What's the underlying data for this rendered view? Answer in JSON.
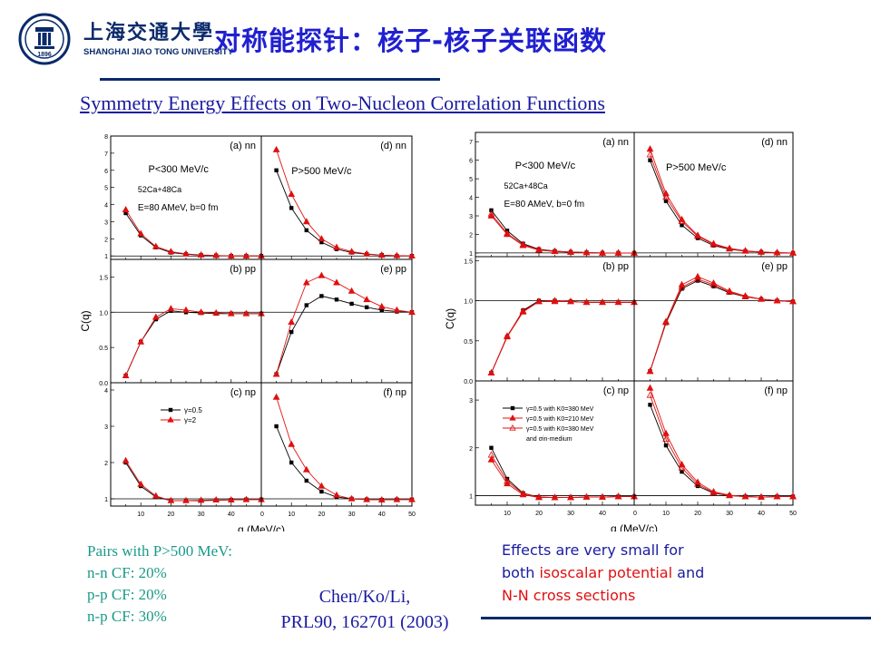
{
  "header": {
    "title": "对称能探针：核子-核子关联函数",
    "university_cn": "上海交通大學",
    "university_en": "SHANGHAI JIAO TONG UNIVERSITY",
    "logo_year": "1896"
  },
  "subtitle": "Symmetry Energy Effects on Two-Nucleon Correlation Functions",
  "notes": {
    "left": [
      "Pairs with P>500 MeV:",
      "n-n CF: 20%",
      "p-p CF: 20%",
      "n-p CF: 30%"
    ],
    "citation": [
      "Chen/Ko/Li,",
      "PRL90, 162701 (2003)"
    ],
    "right_line1": "Effects are very small for",
    "right_line2_a": "both ",
    "right_line2_b": "isoscalar potential",
    "right_line2_c": " and",
    "right_line3": "N-N cross sections"
  },
  "colors": {
    "title": "#2020d0",
    "navy": "#0a2a6b",
    "teal": "#1a9a88",
    "red": "#e01010",
    "black": "#000000"
  },
  "chart_data": [
    {
      "type": "line",
      "xlabel": "q (MeV/c)",
      "ylabel": "C(q)",
      "x": [
        5,
        10,
        15,
        20,
        25,
        30,
        35,
        40,
        45,
        50
      ],
      "panels": [
        {
          "label": "(a) nn",
          "ylim": [
            0.8,
            8
          ],
          "yticks": [
            1,
            2,
            3,
            4,
            5,
            6,
            7,
            8
          ],
          "annotations": [
            "P<300 MeV/c",
            "52Ca+48Ca",
            "E=80 AMeV, b=0 fm"
          ],
          "series": [
            {
              "values": [
                3.5,
                2.2,
                1.5,
                1.2,
                1.1,
                1.05,
                1.02,
                1.0,
                1.0,
                1.0
              ],
              "color": "#000000",
              "marker": "square"
            },
            {
              "values": [
                3.7,
                2.3,
                1.55,
                1.25,
                1.12,
                1.06,
                1.03,
                1.0,
                1.0,
                1.0
              ],
              "color": "#e01010",
              "marker": "triangle"
            }
          ]
        },
        {
          "label": "(d) nn",
          "ylim": [
            0.8,
            8
          ],
          "yticks": [],
          "annotations": [
            "P>500 MeV/c"
          ],
          "series": [
            {
              "values": [
                6.0,
                3.8,
                2.5,
                1.8,
                1.4,
                1.2,
                1.1,
                1.05,
                1.0,
                1.0
              ],
              "color": "#000000",
              "marker": "square"
            },
            {
              "values": [
                7.2,
                4.6,
                3.0,
                2.0,
                1.5,
                1.25,
                1.12,
                1.05,
                1.02,
                1.0
              ],
              "color": "#e01010",
              "marker": "triangle"
            }
          ]
        },
        {
          "label": "(b) pp",
          "ylim": [
            0,
            1.75
          ],
          "yticks": [
            0.0,
            0.5,
            1.0,
            1.5
          ],
          "series": [
            {
              "values": [
                0.1,
                0.58,
                0.9,
                1.02,
                1.0,
                0.99,
                0.98,
                0.98,
                0.98,
                0.98
              ],
              "color": "#000000",
              "marker": "square"
            },
            {
              "values": [
                0.1,
                0.58,
                0.93,
                1.05,
                1.03,
                1.0,
                0.99,
                0.98,
                0.98,
                0.98
              ],
              "color": "#e01010",
              "marker": "triangle"
            }
          ]
        },
        {
          "label": "(e) pp",
          "ylim": [
            0,
            1.75
          ],
          "yticks": [],
          "series": [
            {
              "values": [
                0.12,
                0.72,
                1.1,
                1.23,
                1.18,
                1.12,
                1.07,
                1.03,
                1.01,
                1.0
              ],
              "color": "#000000",
              "marker": "square"
            },
            {
              "values": [
                0.12,
                0.86,
                1.42,
                1.52,
                1.42,
                1.3,
                1.18,
                1.08,
                1.03,
                1.0
              ],
              "color": "#e01010",
              "marker": "triangle"
            }
          ]
        },
        {
          "label": "(c) np",
          "ylim": [
            0.8,
            4.2
          ],
          "yticks": [
            1,
            2,
            3,
            4
          ],
          "legend": [
            "γ=0.5",
            "γ=2"
          ],
          "series": [
            {
              "name": "γ=0.5",
              "values": [
                2.0,
                1.35,
                1.05,
                0.95,
                0.95,
                0.95,
                0.96,
                0.97,
                0.98,
                0.98
              ],
              "color": "#000000",
              "marker": "square"
            },
            {
              "name": "γ=2",
              "values": [
                2.05,
                1.4,
                1.08,
                0.95,
                0.95,
                0.96,
                0.97,
                0.97,
                0.98,
                0.98
              ],
              "color": "#e01010",
              "marker": "triangle"
            }
          ]
        },
        {
          "label": "(f) np",
          "ylim": [
            0.8,
            4.2
          ],
          "yticks": [],
          "series": [
            {
              "values": [
                3.0,
                2.0,
                1.5,
                1.2,
                1.05,
                1.0,
                0.98,
                0.97,
                0.98,
                0.98
              ],
              "color": "#000000",
              "marker": "square"
            },
            {
              "values": [
                3.8,
                2.5,
                1.8,
                1.35,
                1.1,
                1.0,
                0.98,
                0.97,
                0.98,
                0.98
              ],
              "color": "#e01010",
              "marker": "triangle"
            }
          ]
        }
      ]
    },
    {
      "type": "line",
      "xlabel": "q (MeV/c)",
      "ylabel": "C(q)",
      "x": [
        5,
        10,
        15,
        20,
        25,
        30,
        35,
        40,
        45,
        50
      ],
      "panels": [
        {
          "label": "(a) nn",
          "ylim": [
            0.8,
            7.5
          ],
          "yticks": [
            1,
            2,
            3,
            4,
            5,
            6,
            7
          ],
          "annotations": [
            "P<300 MeV/c",
            "52Ca+48Ca",
            "E=80 AMeV, b=0 fm"
          ],
          "series": [
            {
              "values": [
                3.3,
                2.2,
                1.5,
                1.2,
                1.1,
                1.05,
                1.02,
                1.0,
                1.0,
                1.0
              ],
              "color": "#000000",
              "marker": "square"
            },
            {
              "values": [
                3.0,
                2.0,
                1.4,
                1.15,
                1.08,
                1.04,
                1.02,
                1.0,
                1.0,
                1.0
              ],
              "color": "#e01010",
              "marker": "triangle"
            },
            {
              "values": [
                3.1,
                2.05,
                1.45,
                1.18,
                1.09,
                1.05,
                1.02,
                1.0,
                1.0,
                1.0
              ],
              "color": "#e01010",
              "marker": "open-triangle"
            }
          ]
        },
        {
          "label": "(d) nn",
          "ylim": [
            0.8,
            7.5
          ],
          "yticks": [],
          "annotations": [
            "P>500 MeV/c"
          ],
          "series": [
            {
              "values": [
                6.0,
                3.8,
                2.5,
                1.8,
                1.4,
                1.2,
                1.1,
                1.05,
                1.0,
                1.0
              ],
              "color": "#000000",
              "marker": "square"
            },
            {
              "values": [
                6.6,
                4.2,
                2.8,
                1.95,
                1.5,
                1.25,
                1.12,
                1.05,
                1.02,
                1.0
              ],
              "color": "#e01010",
              "marker": "triangle"
            },
            {
              "values": [
                6.3,
                4.0,
                2.7,
                1.9,
                1.45,
                1.22,
                1.1,
                1.05,
                1.01,
                1.0
              ],
              "color": "#e01010",
              "marker": "open-triangle"
            }
          ]
        },
        {
          "label": "(b) pp",
          "ylim": [
            0,
            1.55
          ],
          "yticks": [
            0.0,
            0.5,
            1.0,
            1.5
          ],
          "series": [
            {
              "values": [
                0.1,
                0.55,
                0.88,
                1.0,
                1.0,
                0.99,
                0.98,
                0.98,
                0.98,
                0.98
              ],
              "color": "#000000",
              "marker": "square"
            },
            {
              "values": [
                0.1,
                0.55,
                0.86,
                0.99,
                0.99,
                0.99,
                0.98,
                0.98,
                0.98,
                0.98
              ],
              "color": "#e01010",
              "marker": "triangle"
            },
            {
              "values": [
                0.1,
                0.56,
                0.87,
                0.99,
                1.0,
                0.99,
                0.98,
                0.98,
                0.98,
                0.98
              ],
              "color": "#e01010",
              "marker": "open-triangle"
            }
          ]
        },
        {
          "label": "(e) pp",
          "ylim": [
            0,
            1.55
          ],
          "yticks": [],
          "series": [
            {
              "values": [
                0.12,
                0.72,
                1.15,
                1.25,
                1.18,
                1.1,
                1.05,
                1.02,
                1.0,
                0.99
              ],
              "color": "#000000",
              "marker": "square"
            },
            {
              "values": [
                0.12,
                0.74,
                1.2,
                1.3,
                1.22,
                1.12,
                1.06,
                1.02,
                1.0,
                0.99
              ],
              "color": "#e01010",
              "marker": "triangle"
            },
            {
              "values": [
                0.12,
                0.73,
                1.17,
                1.27,
                1.2,
                1.11,
                1.05,
                1.02,
                1.0,
                0.99
              ],
              "color": "#e01010",
              "marker": "open-triangle"
            }
          ]
        },
        {
          "label": "(c) np",
          "ylim": [
            0.8,
            3.4
          ],
          "yticks": [
            1,
            2,
            3
          ],
          "legend": [
            "γ=0.5 with K0=380 MeV",
            "γ=0.5 with K0=210 MeV",
            "γ=0.5 with K0=380 MeV",
            "and σin-medium"
          ],
          "series": [
            {
              "name": "γ=0.5 with K0=380 MeV",
              "values": [
                2.0,
                1.35,
                1.05,
                0.97,
                0.96,
                0.96,
                0.97,
                0.97,
                0.98,
                0.98
              ],
              "color": "#000000",
              "marker": "square"
            },
            {
              "name": "γ=0.5 with K0=210 MeV",
              "values": [
                1.75,
                1.25,
                1.02,
                0.96,
                0.96,
                0.96,
                0.97,
                0.97,
                0.98,
                0.98
              ],
              "color": "#e01010",
              "marker": "triangle"
            },
            {
              "name": "γ=0.5 with K0=380 MeV and σin-medium",
              "values": [
                1.85,
                1.3,
                1.04,
                0.97,
                0.96,
                0.96,
                0.97,
                0.97,
                0.98,
                0.98
              ],
              "color": "#e01010",
              "marker": "open-triangle"
            }
          ]
        },
        {
          "label": "(f) np",
          "ylim": [
            0.8,
            3.4
          ],
          "yticks": [],
          "series": [
            {
              "values": [
                2.9,
                2.05,
                1.5,
                1.2,
                1.05,
                1.0,
                0.98,
                0.97,
                0.98,
                0.98
              ],
              "color": "#000000",
              "marker": "square"
            },
            {
              "values": [
                3.25,
                2.3,
                1.65,
                1.28,
                1.08,
                1.01,
                0.98,
                0.97,
                0.98,
                0.98
              ],
              "color": "#e01010",
              "marker": "triangle"
            },
            {
              "values": [
                3.1,
                2.18,
                1.58,
                1.24,
                1.06,
                1.0,
                0.98,
                0.97,
                0.98,
                0.98
              ],
              "color": "#e01010",
              "marker": "open-triangle"
            }
          ]
        }
      ]
    }
  ]
}
